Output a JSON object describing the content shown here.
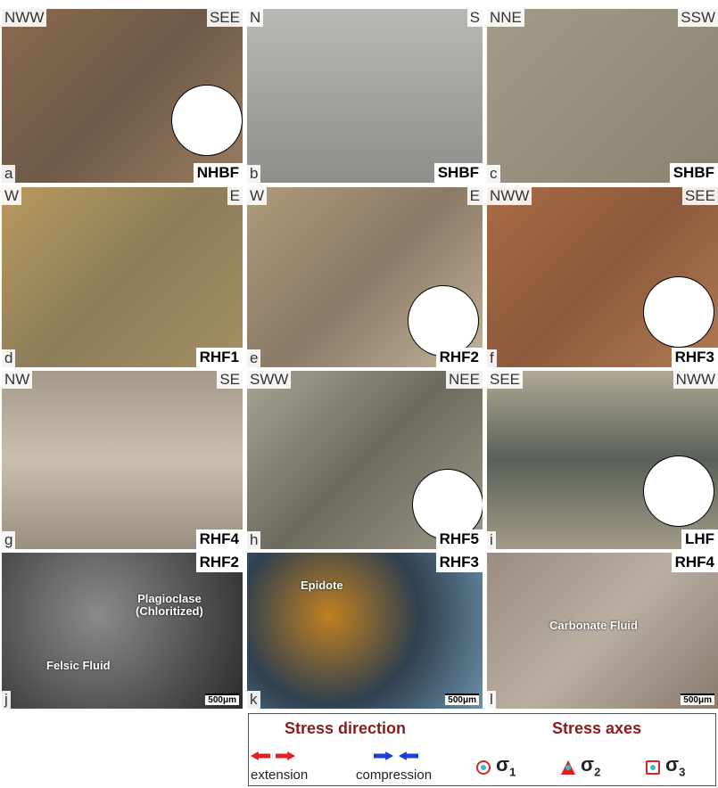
{
  "panels": [
    {
      "letter": "a",
      "left": "NWW",
      "right": "SEE",
      "fault": "NHBF"
    },
    {
      "letter": "b",
      "left": "N",
      "right": "S",
      "fault": "SHBF"
    },
    {
      "letter": "c",
      "left": "NNE",
      "right": "SSW",
      "fault": "SHBF"
    },
    {
      "letter": "d",
      "left": "W",
      "right": "E",
      "fault": "RHF1"
    },
    {
      "letter": "e",
      "left": "W",
      "right": "E",
      "fault": "RHF2"
    },
    {
      "letter": "f",
      "left": "NWW",
      "right": "SEE",
      "fault": "RHF3"
    },
    {
      "letter": "g",
      "left": "NW",
      "right": "SE",
      "fault": "RHF4"
    },
    {
      "letter": "h",
      "left": "SWW",
      "right": "NEE",
      "fault": "RHF5"
    },
    {
      "letter": "i",
      "left": "SEE",
      "right": "NWW",
      "fault": "LHF"
    },
    {
      "letter": "j",
      "fault": "RHF2",
      "scale": "500μm",
      "notes": [
        [
          "Plagioclase",
          "(Chloritized)"
        ],
        [
          "Felsic Fluid"
        ]
      ]
    },
    {
      "letter": "k",
      "fault": "RHF3",
      "scale": "500μm",
      "notes": [
        [
          "Epidote"
        ]
      ]
    },
    {
      "letter": "l",
      "fault": "RHF4",
      "scale": "500μm",
      "notes": [
        [
          "Carbonate Fluid"
        ]
      ]
    }
  ],
  "legend": {
    "direction_title": "Stress direction",
    "extension": "extension",
    "compression": "compression",
    "axes_title": "Stress axes",
    "axes": [
      {
        "symbol": "σ",
        "subscript": "1"
      },
      {
        "symbol": "σ",
        "subscript": "2"
      },
      {
        "symbol": "σ",
        "subscript": "3"
      }
    ]
  }
}
